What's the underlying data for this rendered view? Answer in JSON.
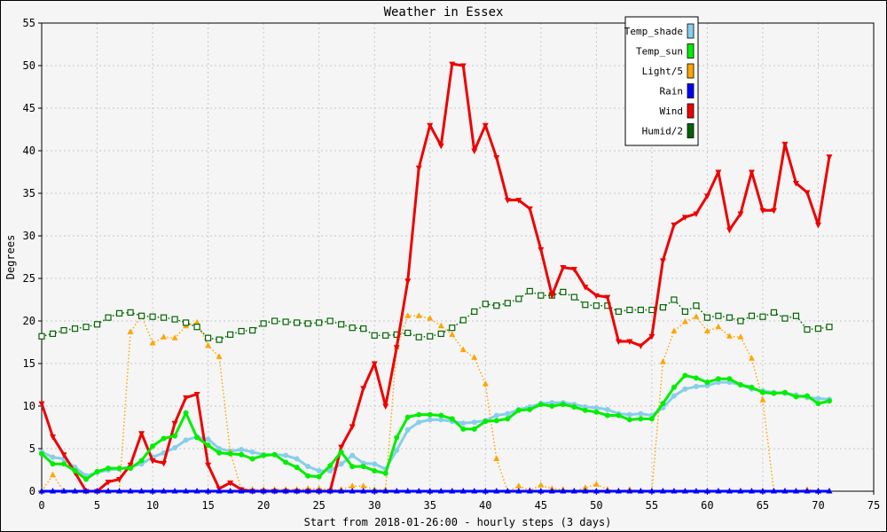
{
  "chart_data": {
    "type": "line",
    "title": "Weather in Essex",
    "xlabel": "Start from 2018-01-26:00 - hourly steps (3 days)",
    "ylabel": "Degrees",
    "xlim": [
      0,
      75
    ],
    "ylim": [
      0,
      55
    ],
    "xticks": [
      0,
      5,
      10,
      15,
      20,
      25,
      30,
      35,
      40,
      45,
      50,
      55,
      60,
      65,
      70,
      75
    ],
    "yticks": [
      0,
      5,
      10,
      15,
      20,
      25,
      30,
      35,
      40,
      45,
      50,
      55
    ],
    "grid": true,
    "legend_position": "top-right",
    "series": [
      {
        "name": "Temp_shade",
        "color": "#87ceeb",
        "marker": "circle",
        "linestyle": "solid",
        "linewidth": 3,
        "values": [
          4.6,
          4.0,
          3.8,
          2.8,
          1.8,
          2.2,
          2.5,
          2.6,
          2.9,
          3.2,
          4.0,
          4.5,
          5.1,
          6.0,
          6.4,
          6.1,
          5.0,
          4.7,
          4.9,
          4.6,
          4.3,
          4.3,
          4.2,
          3.8,
          2.9,
          2.4,
          2.4,
          3.2,
          4.2,
          3.3,
          3.2,
          2.6,
          4.8,
          7.2,
          8.1,
          8.4,
          8.4,
          8.2,
          8.0,
          8.1,
          8.3,
          8.9,
          9.1,
          9.6,
          9.9,
          10.3,
          10.4,
          10.4,
          10.2,
          9.9,
          9.8,
          9.6,
          9.1,
          9.0,
          9.1,
          8.9,
          9.8,
          11.2,
          12.0,
          12.3,
          12.4,
          12.8,
          12.8,
          12.5,
          12.0,
          11.8,
          11.6,
          11.5,
          11.3,
          11.0,
          10.9,
          10.8
        ]
      },
      {
        "name": "Temp_sun",
        "color": "#00ee00",
        "marker": "circle",
        "linestyle": "solid",
        "linewidth": 3,
        "values": [
          4.4,
          3.2,
          3.2,
          2.4,
          1.4,
          2.3,
          2.7,
          2.7,
          2.7,
          3.6,
          5.3,
          6.2,
          6.5,
          9.2,
          6.3,
          5.4,
          4.5,
          4.4,
          4.3,
          3.8,
          4.2,
          4.3,
          3.4,
          2.8,
          1.8,
          1.7,
          3.0,
          4.6,
          2.9,
          2.9,
          2.4,
          2.1,
          6.3,
          8.7,
          9.0,
          9.0,
          8.9,
          8.5,
          7.3,
          7.3,
          8.2,
          8.3,
          8.5,
          9.5,
          9.6,
          10.2,
          10.0,
          10.2,
          9.9,
          9.5,
          9.3,
          8.9,
          8.9,
          8.4,
          8.5,
          8.5,
          10.3,
          12.2,
          13.6,
          13.3,
          12.8,
          13.2,
          13.2,
          12.5,
          12.2,
          11.6,
          11.5,
          11.6,
          11.1,
          11.2,
          10.3,
          10.6
        ]
      },
      {
        "name": "Light/5",
        "color": "#ffa500",
        "marker": "triangle",
        "linestyle": "dotted",
        "linewidth": 1.5,
        "values": [
          0,
          1.9,
          0,
          0,
          0,
          0,
          0,
          0,
          18.7,
          20.6,
          17.4,
          18.1,
          18.0,
          19.4,
          19.8,
          17.1,
          15.8,
          4.6,
          0.2,
          0.2,
          0.2,
          0.2,
          0.2,
          0.2,
          0.3,
          0.3,
          0.2,
          0.2,
          0.6,
          0.6,
          0.2,
          0.2,
          16.9,
          20.6,
          20.6,
          20.3,
          19.4,
          18.4,
          16.6,
          15.7,
          12.6,
          3.8,
          0,
          0.6,
          0.1,
          0.7,
          0.3,
          0.2,
          0,
          0.4,
          0.8,
          0.2,
          0,
          0.2,
          0,
          0,
          15.2,
          18.8,
          19.9,
          20.5,
          18.8,
          19.3,
          18.2,
          18.1,
          15.6,
          10.7,
          0,
          0,
          0,
          0.2,
          0,
          0
        ]
      },
      {
        "name": "Rain",
        "color": "#0000ff",
        "marker": "triangle",
        "linestyle": "solid",
        "linewidth": 3,
        "values": [
          0,
          0,
          0,
          0,
          0,
          0,
          0,
          0,
          0,
          0,
          0,
          0,
          0,
          0,
          0,
          0,
          0,
          0,
          0,
          0,
          0,
          0,
          0,
          0,
          0,
          0,
          0,
          0,
          0,
          0,
          0,
          0,
          0,
          0,
          0,
          0,
          0,
          0,
          0,
          0,
          0,
          0,
          0,
          0,
          0,
          0,
          0,
          0,
          0,
          0,
          0,
          0,
          0,
          0,
          0,
          0,
          0,
          0,
          0,
          0,
          0,
          0,
          0,
          0,
          0,
          0,
          0,
          0,
          0,
          0,
          0,
          0
        ]
      },
      {
        "name": "Wind",
        "color": "#ee0000",
        "marker": "triangle-down",
        "linestyle": "solid",
        "linewidth": 3,
        "values": [
          10.3,
          6.4,
          4.3,
          2.2,
          0,
          0,
          1.1,
          1.4,
          3.1,
          6.8,
          3.6,
          3.3,
          8.0,
          11.0,
          11.4,
          3.1,
          0.3,
          1.0,
          0.2,
          0,
          0,
          0,
          0,
          0,
          0,
          0,
          0,
          5.2,
          7.6,
          12.1,
          15.0,
          10.0,
          16.9,
          24.7,
          38.0,
          43.0,
          40.6,
          50.2,
          50.0,
          40.0,
          43.0,
          39.2,
          34.2,
          34.2,
          33.2,
          28.4,
          23.0,
          26.3,
          26.1,
          24.0,
          23.0,
          22.8,
          17.6,
          17.6,
          17.1,
          18.2,
          27.1,
          31.3,
          32.2,
          32.6,
          34.7,
          37.5,
          30.7,
          32.6,
          37.5,
          33.0,
          33.0,
          40.8,
          36.2,
          35.1,
          31.3,
          39.3
        ]
      },
      {
        "name": "Humid/2",
        "color": "#006400",
        "marker": "square",
        "linestyle": "dotted",
        "linewidth": 1.5,
        "values": [
          18.2,
          18.5,
          18.9,
          19.1,
          19.3,
          19.6,
          20.4,
          20.9,
          21.0,
          20.6,
          20.5,
          20.4,
          20.2,
          19.8,
          19.3,
          18.0,
          17.8,
          18.4,
          18.8,
          18.9,
          19.7,
          20.0,
          19.9,
          19.8,
          19.7,
          19.8,
          20.0,
          19.6,
          19.2,
          19.1,
          18.3,
          18.3,
          18.4,
          18.6,
          18.1,
          18.2,
          18.5,
          19.2,
          20.1,
          21.1,
          22.0,
          21.8,
          22.1,
          22.6,
          23.5,
          23.0,
          23.0,
          23.4,
          22.8,
          21.9,
          21.8,
          21.8,
          21.1,
          21.3,
          21.3,
          21.3,
          21.6,
          22.5,
          21.1,
          21.8,
          20.4,
          20.6,
          20.4,
          20.0,
          20.6,
          20.5,
          21.0,
          20.3,
          20.6,
          19.0,
          19.1,
          19.3
        ]
      }
    ]
  }
}
